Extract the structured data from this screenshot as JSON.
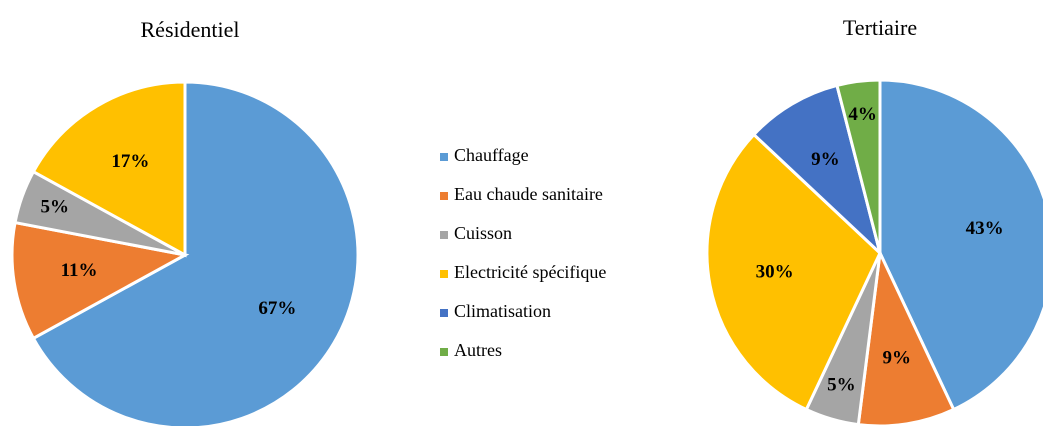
{
  "chart_data": [
    {
      "type": "pie",
      "title": "Résidentiel",
      "categories": [
        "Chauffage",
        "Eau chaude sanitaire",
        "Cuisson",
        "Electricité spécifique"
      ],
      "values": [
        67,
        11,
        5,
        17
      ],
      "value_labels": [
        "67%",
        "11%",
        "5%",
        "17%"
      ],
      "colors": [
        "#5b9bd5",
        "#ed7d31",
        "#a5a5a5",
        "#ffc000"
      ]
    },
    {
      "type": "pie",
      "title": "Tertiaire",
      "categories": [
        "Chauffage",
        "Eau chaude sanitaire",
        "Cuisson",
        "Electricité spécifique",
        "Climatisation",
        "Autres"
      ],
      "values": [
        43,
        9,
        5,
        30,
        9,
        4
      ],
      "value_labels": [
        "43%",
        "9%",
        "5%",
        "30%",
        "9%",
        "4%"
      ],
      "colors": [
        "#5b9bd5",
        "#ed7d31",
        "#a5a5a5",
        "#ffc000",
        "#4472c4",
        "#70ad47"
      ],
      "legend": true
    }
  ]
}
